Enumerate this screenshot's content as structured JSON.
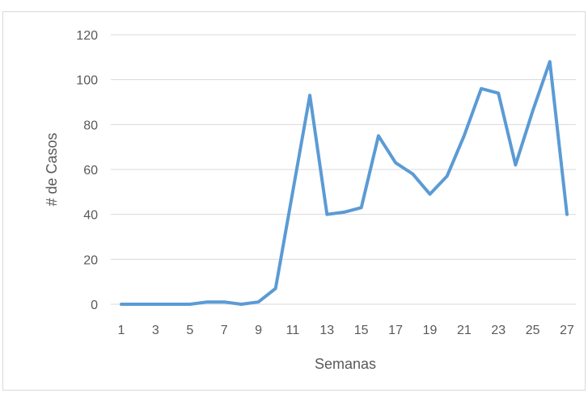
{
  "chart_data": {
    "type": "line",
    "title": "",
    "xlabel": "Semanas",
    "ylabel": "# de Casos",
    "ylim": [
      0,
      120
    ],
    "yticks": [
      0,
      20,
      40,
      60,
      80,
      100,
      120
    ],
    "x": [
      1,
      2,
      3,
      4,
      5,
      6,
      7,
      8,
      9,
      10,
      11,
      12,
      13,
      14,
      15,
      16,
      17,
      18,
      19,
      20,
      21,
      22,
      23,
      24,
      25,
      26,
      27
    ],
    "xtick_labels": [
      "1",
      "3",
      "5",
      "7",
      "9",
      "11",
      "13",
      "15",
      "17",
      "19",
      "21",
      "23",
      "25",
      "27"
    ],
    "series": [
      {
        "color": "#5b9bd5",
        "values": [
          0,
          0,
          0,
          0,
          0,
          1,
          1,
          0,
          1,
          7,
          50,
          93,
          40,
          41,
          43,
          75,
          63,
          58,
          49,
          57,
          75,
          96,
          94,
          62,
          86,
          108,
          40
        ]
      }
    ],
    "grid": true,
    "legend": "none",
    "gridline_color": "#d9d9d9"
  }
}
